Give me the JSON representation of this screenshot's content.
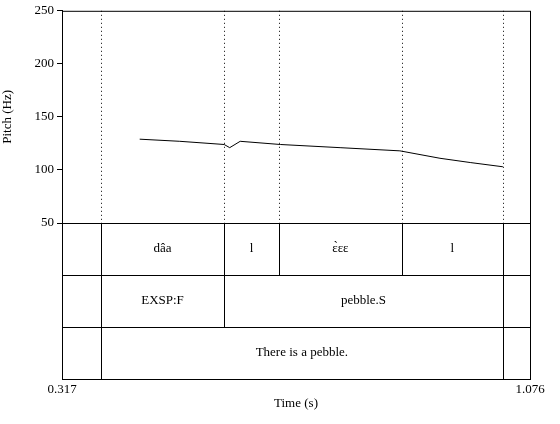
{
  "chart_data": {
    "type": "line",
    "xlabel": "Time (s)",
    "ylabel": "Pitch (Hz)",
    "x": [
      0.443,
      0.508,
      0.58,
      0.589,
      0.606,
      0.671,
      0.768,
      0.865,
      0.93,
      0.979,
      1.032
    ],
    "values": [
      129,
      127,
      124,
      121,
      127,
      124,
      121,
      118,
      111,
      107,
      103
    ],
    "color": "#000000",
    "xlim": [
      0.317,
      1.076
    ],
    "xticks": [
      0.317,
      1.076
    ],
    "ylim": [
      50,
      250
    ],
    "yticks": [
      50,
      100,
      150,
      200,
      250
    ],
    "grid": false,
    "tiers": [
      [
        {
          "start": 0.38,
          "end": 0.58,
          "text": "dâa"
        },
        {
          "start": 0.58,
          "end": 0.669,
          "text": "l"
        },
        {
          "start": 0.669,
          "end": 0.868,
          "text": "ɛ̀ɛɛ"
        },
        {
          "start": 0.868,
          "end": 1.032,
          "text": "l"
        }
      ],
      [
        {
          "start": 0.38,
          "end": 0.58,
          "text": "EXSP:F"
        },
        {
          "start": 0.58,
          "end": 1.032,
          "text": "pebble.S"
        }
      ],
      [
        {
          "start": 0.38,
          "end": 1.032,
          "text": "There is a pebble."
        }
      ]
    ]
  }
}
